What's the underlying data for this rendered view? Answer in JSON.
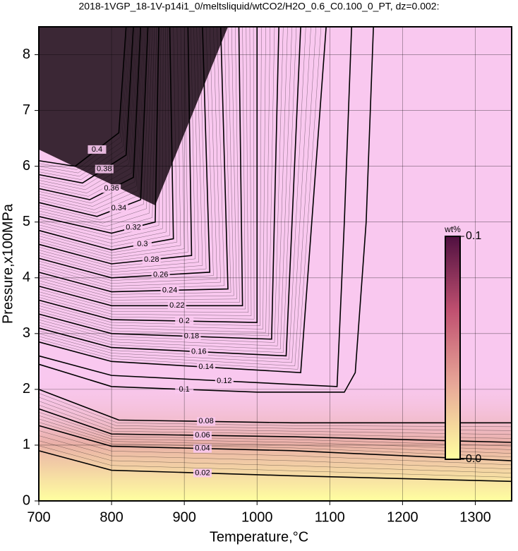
{
  "chart_data": {
    "type": "contour",
    "title": "2018-1VGP_18-1V-p14i1_0/meltsliquid/wtCO2/H2O_0.6_C0.100_0_PT, dz=0.002:",
    "x_label": "Temperature,°C",
    "y_label": "Pressure,x100MPa",
    "xlim": [
      700,
      1350
    ],
    "ylim": [
      0,
      8.5
    ],
    "xticks": [
      700,
      800,
      900,
      1000,
      1100,
      1200,
      1300
    ],
    "yticks": [
      0,
      1,
      2,
      3,
      4,
      5,
      6,
      7,
      8
    ],
    "grid": true,
    "line_color": "#000000",
    "background_color": "#f9c8ef",
    "contours": [
      {
        "level": 0.02,
        "x": [
          700,
          800,
          1050,
          1350
        ],
        "y": [
          0.9,
          0.55,
          0.45,
          0.35
        ]
      },
      {
        "level": 0.04,
        "x": [
          700,
          800,
          1050,
          1350
        ],
        "y": [
          1.35,
          0.98,
          0.9,
          0.72
        ]
      },
      {
        "level": 0.06,
        "x": [
          700,
          800,
          1050,
          1350
        ],
        "y": [
          1.65,
          1.2,
          1.15,
          1.05
        ]
      },
      {
        "level": 0.08,
        "x": [
          700,
          810,
          1050,
          1350
        ],
        "y": [
          2.0,
          1.45,
          1.4,
          1.4
        ]
      },
      {
        "level": 0.1,
        "x": [
          700,
          800,
          1000,
          1120,
          1135,
          1150,
          1160
        ],
        "y": [
          2.45,
          2.05,
          1.95,
          1.95,
          2.3,
          5.0,
          8.5
        ]
      },
      {
        "level": 0.12,
        "x": [
          700,
          800,
          1110,
          1120,
          1130
        ],
        "y": [
          2.6,
          2.25,
          2.05,
          5.0,
          8.5
        ]
      },
      {
        "level": 0.14,
        "x": [
          700,
          800,
          1060,
          1095
        ],
        "y": [
          2.85,
          2.5,
          2.3,
          8.5
        ]
      },
      {
        "level": 0.16,
        "x": [
          700,
          800,
          1040,
          1060
        ],
        "y": [
          3.1,
          2.75,
          2.6,
          8.5
        ]
      },
      {
        "level": 0.18,
        "x": [
          700,
          800,
          1020,
          1030
        ],
        "y": [
          3.35,
          3.0,
          2.9,
          8.5
        ]
      },
      {
        "level": 0.2,
        "x": [
          700,
          800,
          1000,
          1000
        ],
        "y": [
          3.6,
          3.25,
          3.2,
          8.5
        ]
      },
      {
        "level": 0.22,
        "x": [
          700,
          800,
          980,
          975
        ],
        "y": [
          3.85,
          3.5,
          3.5,
          8.5
        ]
      },
      {
        "level": 0.24,
        "x": [
          700,
          800,
          960,
          950
        ],
        "y": [
          4.1,
          3.75,
          3.8,
          8.5
        ]
      },
      {
        "level": 0.26,
        "x": [
          700,
          800,
          935,
          925
        ],
        "y": [
          4.35,
          4.0,
          4.1,
          8.5
        ]
      },
      {
        "level": 0.28,
        "x": [
          700,
          800,
          910,
          905
        ],
        "y": [
          4.6,
          4.25,
          4.4,
          8.5
        ]
      },
      {
        "level": 0.3,
        "x": [
          700,
          800,
          885,
          880
        ],
        "y": [
          4.85,
          4.5,
          4.7,
          8.5
        ]
      },
      {
        "level": 0.32,
        "x": [
          700,
          800,
          860,
          865
        ],
        "y": [
          5.1,
          4.8,
          5.0,
          8.5
        ]
      },
      {
        "level": 0.34,
        "x": [
          700,
          780,
          840,
          850
        ],
        "y": [
          5.35,
          5.1,
          5.4,
          8.5
        ]
      },
      {
        "level": 0.36,
        "x": [
          700,
          770,
          830,
          840
        ],
        "y": [
          5.6,
          5.4,
          5.8,
          8.5
        ]
      },
      {
        "level": 0.38,
        "x": [
          700,
          760,
          820,
          830
        ],
        "y": [
          5.85,
          5.7,
          6.2,
          8.5
        ]
      },
      {
        "level": 0.4,
        "x": [
          700,
          750,
          810,
          820
        ],
        "y": [
          6.1,
          6.0,
          6.6,
          8.5
        ]
      }
    ],
    "colorbar": {
      "label": "wt%",
      "colors": [
        "#ffffa0",
        "#e8a898",
        "#c05070",
        "#501040"
      ],
      "ticks": [
        {
          "value": 0.1,
          "label": "0.1"
        },
        {
          "value": 0,
          "label": "0.0"
        }
      ],
      "lim": [
        0,
        0.1
      ]
    }
  }
}
